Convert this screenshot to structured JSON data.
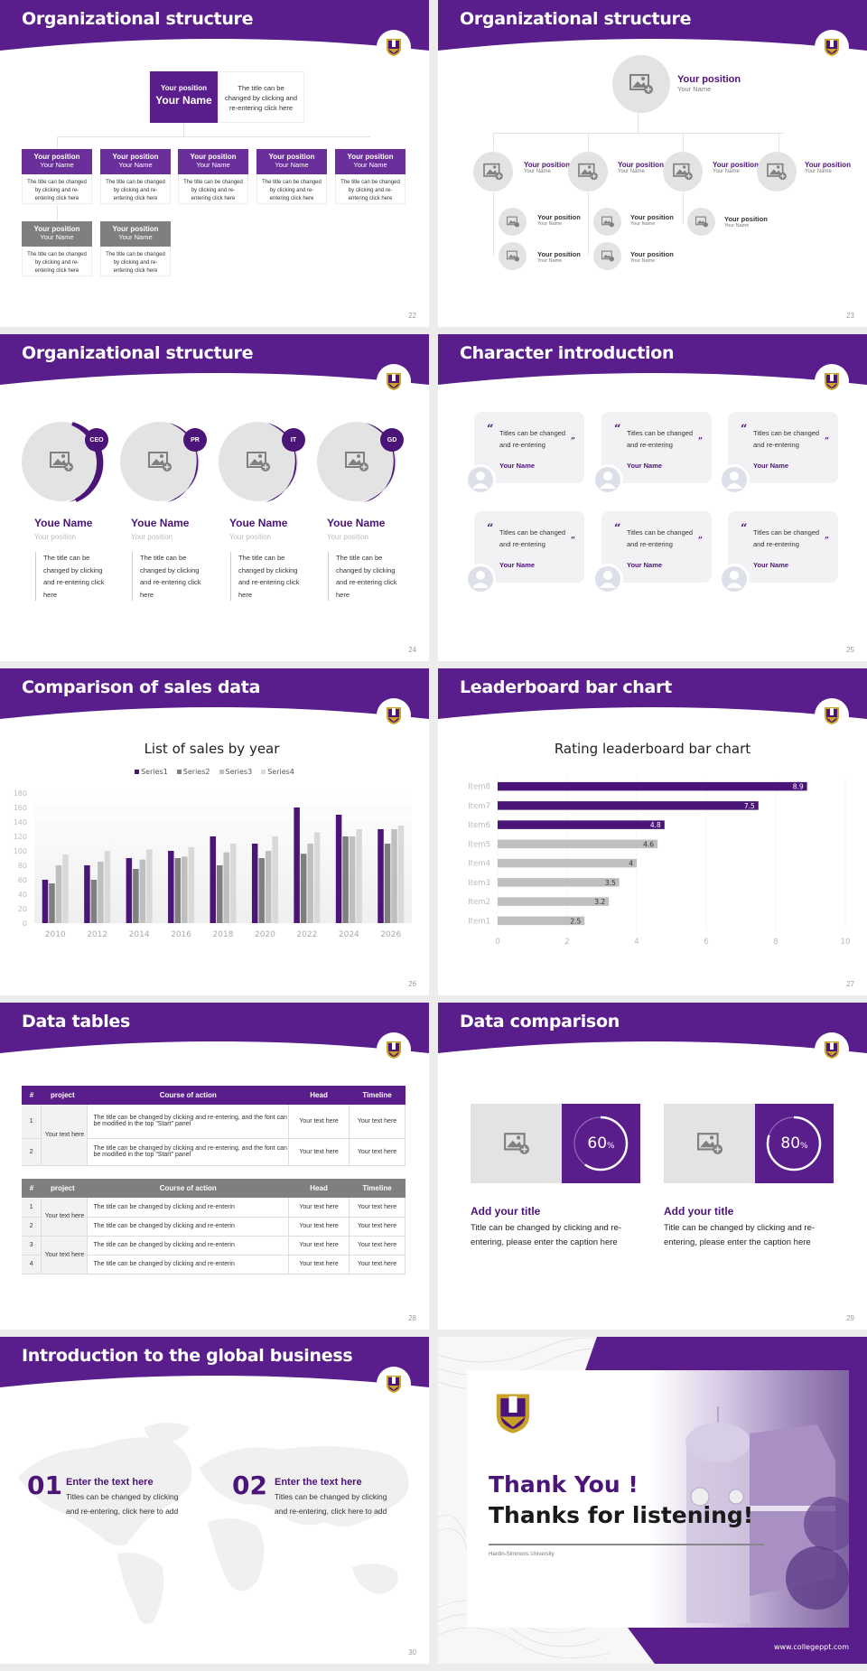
{
  "brand": {
    "primary": "#5a1d8c",
    "dark": "#4b1478",
    "gray": "#7f7f7f",
    "light_gray": "#e3e3e3"
  },
  "slides": {
    "s22": {
      "title": "Organizational structure",
      "page": "22",
      "top": {
        "position": "Your position",
        "name": "Your Name",
        "desc": "The title can be changed by clicking and re-entering click here"
      },
      "boxes": [
        {
          "position": "Your position",
          "name": "Your Name",
          "desc": "The title can be changed by clicking and re-entering click here"
        },
        {
          "position": "Your position",
          "name": "Your Name",
          "desc": "The title can be changed by clicking and re-entering click here"
        },
        {
          "position": "Your position",
          "name": "Your Name",
          "desc": "The title can be changed by clicking and re-entering click here"
        },
        {
          "position": "Your position",
          "name": "Your Name",
          "desc": "The title can be changed by clicking and re-entering click here"
        },
        {
          "position": "Your position",
          "name": "Your Name",
          "desc": "The title can be changed by clicking and re-entering click here"
        },
        {
          "position": "Your position",
          "name": "Your Name",
          "desc": "The title can be changed by clicking and re-entering click here"
        },
        {
          "position": "Your position",
          "name": "Your Name",
          "desc": "The title can be changed by clicking and re-entering click here"
        }
      ]
    },
    "s23": {
      "title": "Organizational structure",
      "page": "23",
      "top": {
        "position": "Your position",
        "name": "Your Name"
      },
      "level2": [
        {
          "position": "Your position",
          "name": "Your Name"
        },
        {
          "position": "Your position",
          "name": "Your Name"
        },
        {
          "position": "Your position",
          "name": "Your Name"
        },
        {
          "position": "Your position",
          "name": "Your Name"
        }
      ],
      "level3": [
        {
          "position": "Your position",
          "name": "Your Name"
        },
        {
          "position": "Your position",
          "name": "Your Name"
        },
        {
          "position": "Your position",
          "name": "Your Name"
        },
        {
          "position": "Your position",
          "name": "Your Name"
        },
        {
          "position": "Your position",
          "name": "Your Name"
        }
      ]
    },
    "s24": {
      "title": "Organizational structure",
      "page": "24",
      "people": [
        {
          "badge": "CEO",
          "name": "Youe Name",
          "position": "Your position",
          "desc": "The title can be changed by clicking and re-entering click here"
        },
        {
          "badge": "PR",
          "name": "Youe Name",
          "position": "Your position",
          "desc": "The title can be changed by clicking and re-entering click here"
        },
        {
          "badge": "IT",
          "name": "Youe Name",
          "position": "Your position",
          "desc": "The title can be changed by clicking and re-entering click here"
        },
        {
          "badge": "GD",
          "name": "Youe Name",
          "position": "Your position",
          "desc": "The title can be changed by clicking and re-entering click here"
        }
      ]
    },
    "s25": {
      "title": "Character introduction",
      "page": "25",
      "quote_open": "“",
      "quote_close": "”",
      "cards": [
        {
          "text": "Titles can be changed and re-entering",
          "name": "Your Name"
        },
        {
          "text": "Titles can be changed and re-entering",
          "name": "Your Name"
        },
        {
          "text": "Titles can be changed and re-entering",
          "name": "Your Name"
        },
        {
          "text": "Titles can be changed and re-entering",
          "name": "Your Name"
        },
        {
          "text": "Titles can be changed and re-entering",
          "name": "Your Name"
        },
        {
          "text": "Titles can be changed and re-entering",
          "name": "Your Name"
        }
      ]
    },
    "s26": {
      "title": "Comparison of sales data",
      "page": "26"
    },
    "s27": {
      "title": "Leaderboard bar chart",
      "page": "27"
    },
    "s28": {
      "title": "Data tables",
      "page": "28",
      "headers": [
        "#",
        "project",
        "Course of action",
        "Head",
        "Timeline"
      ],
      "table1": {
        "project": "Your text here",
        "rows": [
          {
            "num": "1",
            "course": "The title can be changed by clicking and re-entering, and the font can be modified in the top \"Start\" panel",
            "head": "Your text here",
            "timeline": "Your text here"
          },
          {
            "num": "2",
            "course": "The title can be changed by clicking and re-entering, and the font can be modified in the top \"Start\" panel",
            "head": "Your text here",
            "timeline": "Your text here"
          }
        ]
      },
      "table2": {
        "projects": [
          "Your text here",
          "Your text here"
        ],
        "rows": [
          {
            "num": "1",
            "course": "The title can be changed by clicking and re-enterin",
            "head": "Your text here",
            "timeline": "Your text here"
          },
          {
            "num": "2",
            "course": "The title can be changed by clicking and re-enterin",
            "head": "Your text here",
            "timeline": "Your text here"
          },
          {
            "num": "3",
            "course": "The title can be changed by clicking and re-enterin",
            "head": "Your text here",
            "timeline": "Your text here"
          },
          {
            "num": "4",
            "course": "The title can be changed by clicking and re-enterin",
            "head": "Your text here",
            "timeline": "Your text here"
          }
        ]
      }
    },
    "s29": {
      "title": "Data comparison",
      "page": "29",
      "items": [
        {
          "value": "60",
          "unit": "%",
          "pct": 60,
          "title": "Add your title",
          "desc": "Title can be changed by clicking and re-entering, please enter the caption here"
        },
        {
          "value": "80",
          "unit": "%",
          "pct": 80,
          "title": "Add your title",
          "desc": "Title can be changed by clicking and re-entering, please enter the caption here"
        }
      ]
    },
    "s30": {
      "title": "Introduction to the global business",
      "page": "30",
      "items": [
        {
          "num": "01",
          "title": "Enter the text here",
          "desc": "Titles can be changed by clicking and re-entering, click here to add"
        },
        {
          "num": "02",
          "title": "Enter the text here",
          "desc": "Titles can be changed by clicking and re-entering, click here to add"
        }
      ]
    },
    "s31": {
      "line1": "Thank You !",
      "line2": "Thanks for listening!",
      "university": "Hardin-Simmons University",
      "website": "www.collegeppt.com"
    }
  },
  "chart_data": [
    {
      "type": "bar",
      "title": "List of sales by year",
      "categories": [
        "2010",
        "2012",
        "2014",
        "2016",
        "2018",
        "2020",
        "2022",
        "2024",
        "2026"
      ],
      "series": [
        {
          "name": "Series1",
          "color": "#4b1478",
          "values": [
            60,
            80,
            90,
            100,
            120,
            110,
            160,
            150,
            130
          ]
        },
        {
          "name": "Series2",
          "color": "#7f7f7f",
          "values": [
            55,
            60,
            75,
            90,
            80,
            90,
            96,
            120,
            110
          ]
        },
        {
          "name": "Series3",
          "color": "#bfbfbf",
          "values": [
            80,
            85,
            88,
            92,
            98,
            100,
            110,
            120,
            130
          ]
        },
        {
          "name": "Series4",
          "color": "#d9d9d9",
          "values": [
            95,
            100,
            102,
            105,
            110,
            120,
            126,
            130,
            135
          ]
        }
      ],
      "yticks": [
        "0",
        "20",
        "40",
        "60",
        "80",
        "100",
        "120",
        "140",
        "160",
        "180"
      ],
      "ylim": [
        0,
        180
      ],
      "xlabel": "",
      "ylabel": "",
      "legend_position": "top",
      "grid": true
    },
    {
      "type": "bar",
      "orientation": "horizontal",
      "title": "Rating leaderboard bar chart",
      "categories": [
        "Item8",
        "Item7",
        "Item6",
        "Item5",
        "Item4",
        "Item3",
        "Item2",
        "Item1"
      ],
      "values": [
        8.9,
        7.5,
        4.8,
        4.6,
        4,
        3.5,
        3.2,
        2.5
      ],
      "labels": [
        "8.9",
        "7.5",
        "4.8",
        "4.6",
        "4",
        "3.5",
        "3.2",
        "2.5"
      ],
      "colors": [
        "#4b1478",
        "#4b1478",
        "#4b1478",
        "#bfbfbf",
        "#bfbfbf",
        "#bfbfbf",
        "#bfbfbf",
        "#bfbfbf"
      ],
      "xticks": [
        "0",
        "2",
        "4",
        "6",
        "8",
        "10"
      ],
      "xlim": [
        0,
        10
      ],
      "xlabel": "",
      "ylabel": "",
      "grid": true
    }
  ]
}
